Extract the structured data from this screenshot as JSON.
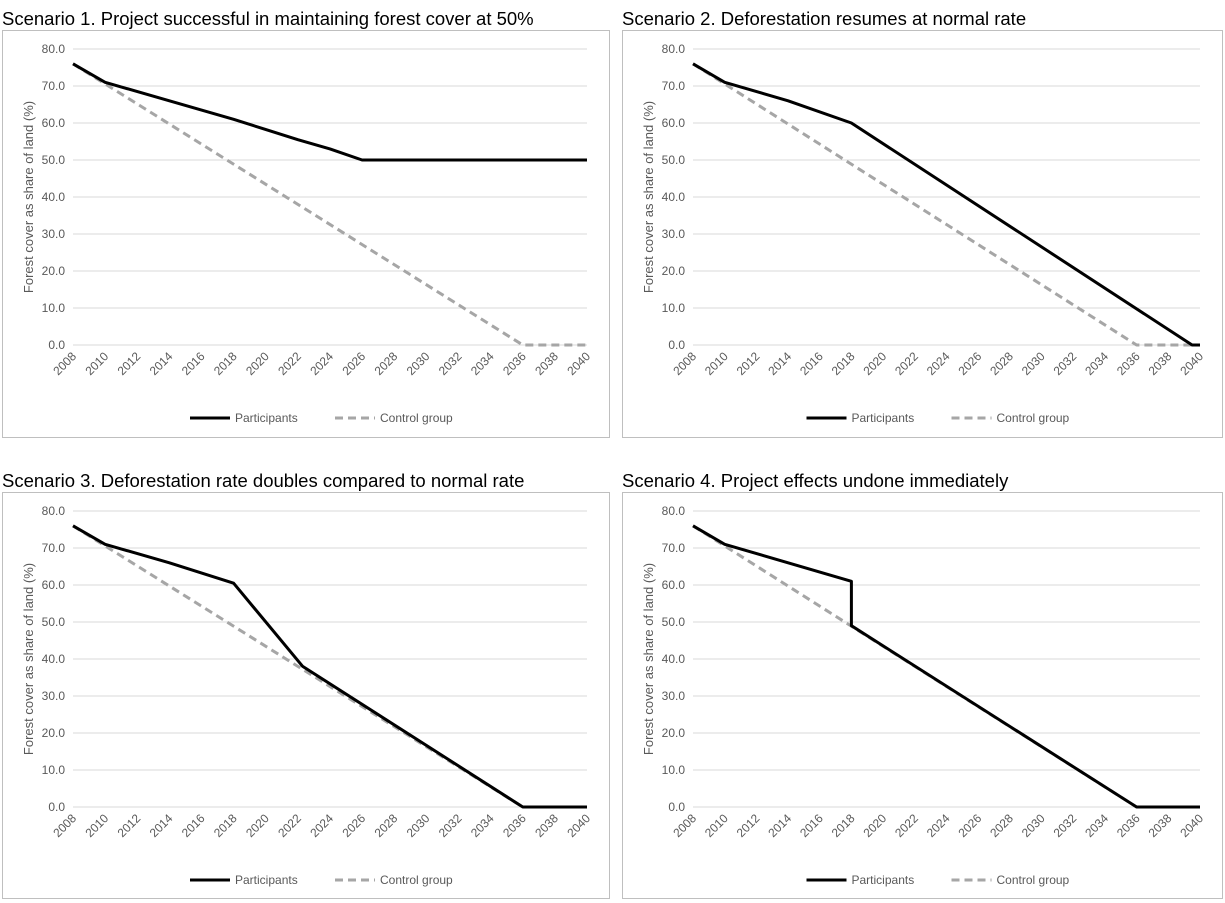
{
  "panels": [
    {
      "title": "Scenario 1. Project successful in maintaining forest cover at 50%",
      "chart_data": {
        "type": "line",
        "ylabel": "Forest  cover as share of land (%)",
        "xlabel": "",
        "ylim": [
          0,
          80
        ],
        "yticks": [
          "0.0",
          "10.0",
          "20.0",
          "30.0",
          "40.0",
          "50.0",
          "60.0",
          "70.0",
          "80.0"
        ],
        "xticks": [
          "2008",
          "2010",
          "2012",
          "2014",
          "2016",
          "2018",
          "2020",
          "2022",
          "2024",
          "2026",
          "2028",
          "2030",
          "2032",
          "2034",
          "2036",
          "2038",
          "2040"
        ],
        "xlim": [
          2008,
          2040
        ],
        "grid": true,
        "legend": "bottom",
        "series": [
          {
            "name": "Participants",
            "color": "#000000",
            "dash": "solid",
            "x": [
              2008,
              2010,
              2014,
              2018,
              2022,
              2024,
              2026,
              2040
            ],
            "y": [
              76.0,
              71.0,
              66.0,
              61.0,
              55.5,
              53.0,
              50.0,
              50.0
            ]
          },
          {
            "name": "Control group",
            "color": "#a6a6a6",
            "dash": "dashed",
            "x": [
              2008,
              2036,
              2040
            ],
            "y": [
              76.0,
              0.0,
              0.0
            ]
          }
        ]
      }
    },
    {
      "title": "Scenario 2. Deforestation resumes at normal rate",
      "chart_data": {
        "type": "line",
        "ylabel": "Forest  cover as share of land (%)",
        "xlabel": "",
        "ylim": [
          0,
          80
        ],
        "yticks": [
          "0.0",
          "10.0",
          "20.0",
          "30.0",
          "40.0",
          "50.0",
          "60.0",
          "70.0",
          "80.0"
        ],
        "xticks": [
          "2008",
          "2010",
          "2012",
          "2014",
          "2016",
          "2018",
          "2020",
          "2022",
          "2024",
          "2026",
          "2028",
          "2030",
          "2032",
          "2034",
          "2036",
          "2038",
          "2040"
        ],
        "xlim": [
          2008,
          2040
        ],
        "grid": true,
        "legend": "bottom",
        "series": [
          {
            "name": "Participants",
            "color": "#000000",
            "dash": "solid",
            "x": [
              2008,
              2010,
              2014,
              2018,
              2039.5,
              2040
            ],
            "y": [
              76.0,
              71.0,
              66.0,
              60.0,
              0.0,
              0.0
            ]
          },
          {
            "name": "Control group",
            "color": "#a6a6a6",
            "dash": "dashed",
            "x": [
              2008,
              2036,
              2040
            ],
            "y": [
              76.0,
              0.0,
              0.0
            ]
          }
        ]
      }
    },
    {
      "title": "Scenario 3. Deforestation rate doubles compared to normal rate",
      "chart_data": {
        "type": "line",
        "ylabel": "Forest  cover as share of land (%)",
        "xlabel": "",
        "ylim": [
          0,
          80
        ],
        "yticks": [
          "0.0",
          "10.0",
          "20.0",
          "30.0",
          "40.0",
          "50.0",
          "60.0",
          "70.0",
          "80.0"
        ],
        "xticks": [
          "2008",
          "2010",
          "2012",
          "2014",
          "2016",
          "2018",
          "2020",
          "2022",
          "2024",
          "2026",
          "2028",
          "2030",
          "2032",
          "2034",
          "2036",
          "2038",
          "2040"
        ],
        "xlim": [
          2008,
          2040
        ],
        "grid": true,
        "legend": "bottom",
        "series": [
          {
            "name": "Participants",
            "color": "#000000",
            "dash": "solid",
            "x": [
              2008,
              2010,
              2014,
              2018,
              2022.3,
              2036,
              2040
            ],
            "y": [
              76.0,
              71.0,
              66.0,
              60.5,
              38.0,
              0.0,
              0.0
            ]
          },
          {
            "name": "Control group",
            "color": "#a6a6a6",
            "dash": "dashed",
            "x": [
              2008,
              2036,
              2040
            ],
            "y": [
              76.0,
              0.0,
              0.0
            ]
          }
        ]
      }
    },
    {
      "title": "Scenario 4. Project effects undone immediately",
      "chart_data": {
        "type": "line",
        "ylabel": "Forest cover as share of land (%)",
        "xlabel": "",
        "ylim": [
          0,
          80
        ],
        "yticks": [
          "0.0",
          "10.0",
          "20.0",
          "30.0",
          "40.0",
          "50.0",
          "60.0",
          "70.0",
          "80.0"
        ],
        "xticks": [
          "2008",
          "2010",
          "2012",
          "2014",
          "2016",
          "2018",
          "2020",
          "2022",
          "2024",
          "2026",
          "2028",
          "2030",
          "2032",
          "2034",
          "2036",
          "2038",
          "2040"
        ],
        "xlim": [
          2008,
          2040
        ],
        "grid": true,
        "legend": "bottom",
        "series": [
          {
            "name": "Participants",
            "color": "#000000",
            "dash": "solid",
            "x": [
              2008,
              2010,
              2014,
              2018,
              2018,
              2036,
              2040
            ],
            "y": [
              76.0,
              71.0,
              66.0,
              61.0,
              49.0,
              0.0,
              0.0
            ]
          },
          {
            "name": "Control group",
            "color": "#a6a6a6",
            "dash": "dashed",
            "x": [
              2008,
              2036,
              2040
            ],
            "y": [
              76.0,
              0.0,
              0.0
            ]
          }
        ]
      }
    }
  ]
}
